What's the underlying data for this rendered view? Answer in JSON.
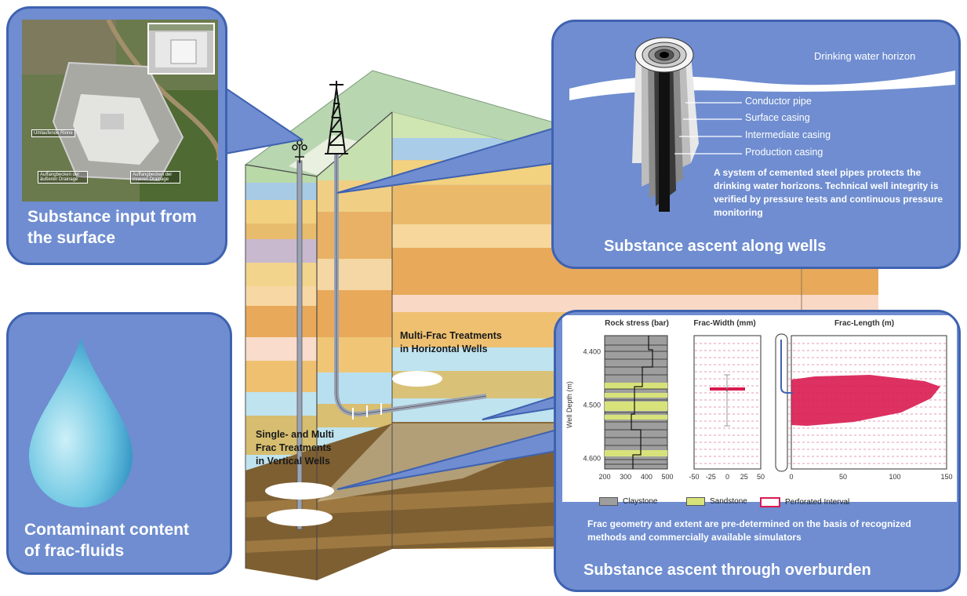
{
  "colors": {
    "panel_fill": "#6f8dd0",
    "panel_border": "#3f62b0",
    "frac_red": "#d81b50",
    "claystone": "#9e9e9e",
    "sandstone": "#d7e37a"
  },
  "panels": {
    "surface": {
      "title_line1": "Substance input from",
      "title_line2": "the surface",
      "photo_labels": [
        "Umlaufende Rinne",
        "Auffangbecken der äußeren Drainage",
        "Auffangbecken der inneren Drainage"
      ]
    },
    "wells": {
      "drinking_water": "Drinking water horizon",
      "casings": [
        "Conductor pipe",
        "Surface casing",
        "Intermediate casing",
        "Production casing"
      ],
      "description": "A system of cemented steel pipes protects the drinking water horizons. Technical well integrity is verified by pressure tests and continuous pressure monitoring",
      "title": "Substance ascent along wells"
    },
    "fluids": {
      "title_line1": "Contaminant content",
      "title_line2": "of frac-fluids"
    },
    "overburden": {
      "chart_titles": [
        "Rock stress (bar)",
        "Frac-Width (mm)",
        "Frac-Length (m)"
      ],
      "legend": [
        "Claystone",
        "Sandstone",
        "Perforated Interval"
      ],
      "description": "Frac geometry and extent are pre-determined on the basis of recognized methods and commercially available simulators",
      "title": "Substance ascent through overburden"
    }
  },
  "block_labels": {
    "horizontal": [
      "Multi-Frac Treatments",
      "in Horizontal Wells"
    ],
    "vertical": [
      "Single- and Multi",
      "Frac Treatments",
      "in Vertical Wells"
    ]
  },
  "chart_data": [
    {
      "type": "other",
      "title": "Rock stress (bar)",
      "ylabel": "Well Depth (m)",
      "yticks": [
        "4.400",
        "4.500",
        "4.600"
      ],
      "xticks": [
        "200",
        "300",
        "400",
        "500"
      ],
      "xlim": [
        200,
        500
      ],
      "ylim": [
        4.37,
        4.62
      ]
    },
    {
      "type": "other",
      "title": "Frac-Width (mm)",
      "xticks": [
        "-50",
        "-25",
        "0",
        "25",
        "50"
      ],
      "xlim": [
        -50,
        50
      ]
    },
    {
      "type": "area",
      "title": "Frac-Length (m)",
      "xticks": [
        "0",
        "50",
        "100",
        "150"
      ],
      "xlim": [
        0,
        150
      ]
    }
  ]
}
